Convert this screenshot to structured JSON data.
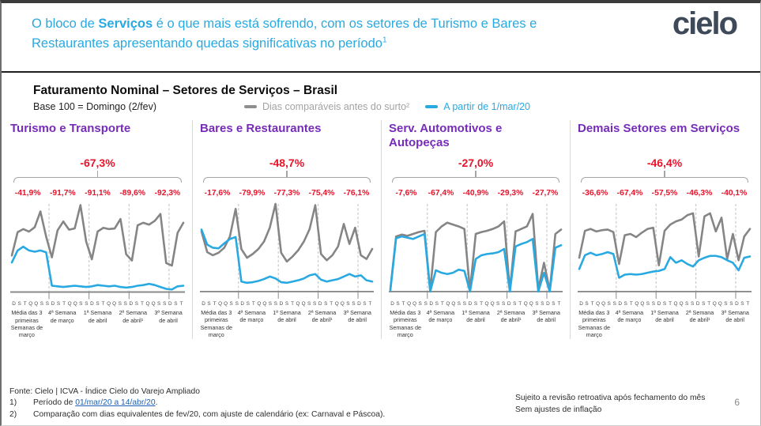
{
  "header": {
    "text_before_bold": "O bloco de ",
    "bold": "Serviços",
    "text_after_bold": " é o que mais está sofrendo, com os setores de Turismo e Bares e Restaurantes apresentando quedas significativas no período",
    "superscript": "1",
    "logo_text": "cielo"
  },
  "section": {
    "title": "Faturamento Nominal – Setores de Serviços – Brasil",
    "base_label": "Base 100 = Domingo (2/fev)",
    "legend": [
      {
        "label": "Dias comparáveis antes do surto²",
        "color": "#8f8f8f"
      },
      {
        "label": "A partir de 1/mar/20",
        "color": "#29A9E1"
      }
    ]
  },
  "colors": {
    "header_blue": "#29A9E1",
    "title_purple": "#762CB8",
    "negative_red": "#E8132B",
    "line_gray": "#858585",
    "line_blue": "#29A9E1",
    "dashed_gray": "#c4c4c4",
    "axis_gray": "#8a8a8a"
  },
  "axis": {
    "day_labels": [
      "D",
      "S",
      "T",
      "Q",
      "Q",
      "S",
      "S",
      "D",
      "S",
      "T",
      "Q",
      "Q",
      "S",
      "S",
      "D",
      "S",
      "T",
      "Q",
      "Q",
      "S",
      "S",
      "D",
      "S",
      "T",
      "Q",
      "Q",
      "S",
      "S",
      "D",
      "S",
      "T"
    ],
    "week_labels": [
      "Média das 3 primeiras Semanas de março",
      "4ª Semana de março",
      "1ª Semana de abril",
      "2ª Semana de abril¹",
      "3ª Semana de abril"
    ]
  },
  "chart_data": [
    {
      "type": "line",
      "title": "Turismo e Transporte",
      "total_change": "-67,3%",
      "week_changes": [
        "-41,9%",
        "-91,7%",
        "-91,1%",
        "-89,6%",
        "-92,3%"
      ],
      "ylim": [
        0,
        140
      ],
      "series": [
        {
          "name": "Dias comparáveis antes do surto",
          "color": "#858585",
          "values": [
            58,
            95,
            100,
            96,
            103,
            128,
            88,
            55,
            98,
            112,
            99,
            101,
            138,
            80,
            52,
            96,
            102,
            100,
            101,
            116,
            60,
            50,
            106,
            110,
            107,
            113,
            124,
            46,
            42,
            94,
            110
          ]
        },
        {
          "name": "A partir de 1/mar/20",
          "color": "#29A9E1",
          "values": [
            47,
            66,
            72,
            66,
            64,
            66,
            63,
            10,
            9,
            8,
            9,
            10,
            9,
            8,
            9,
            11,
            10,
            9,
            10,
            8,
            7,
            8,
            10,
            11,
            13,
            11,
            8,
            5,
            4,
            9,
            10
          ]
        }
      ]
    },
    {
      "type": "line",
      "title": "Bares e Restaurantes",
      "total_change": "-48,7%",
      "week_changes": [
        "-17,6%",
        "-79,9%",
        "-77,3%",
        "-75,4%",
        "-76,1%"
      ],
      "ylim": [
        0,
        140
      ],
      "series": [
        {
          "name": "Dias comparáveis antes do surto",
          "color": "#858585",
          "values": [
            96,
            63,
            58,
            62,
            70,
            88,
            132,
            68,
            54,
            60,
            68,
            80,
            102,
            140,
            62,
            48,
            56,
            66,
            80,
            100,
            138,
            60,
            50,
            58,
            72,
            108,
            76,
            102,
            58,
            52,
            68
          ]
        },
        {
          "name": "A partir de 1/mar/20",
          "color": "#29A9E1",
          "values": [
            99,
            75,
            70,
            69,
            77,
            84,
            87,
            16,
            14,
            15,
            17,
            20,
            24,
            21,
            15,
            14,
            16,
            18,
            21,
            26,
            28,
            19,
            16,
            18,
            20,
            24,
            28,
            24,
            26,
            18,
            16
          ]
        }
      ]
    },
    {
      "type": "line",
      "title": "Serv. Automotivos e Autopeças",
      "total_change": "-27,0%",
      "week_changes": [
        "-7,6%",
        "-67,4%",
        "-40,9%",
        "-29,3%",
        "-27,7%"
      ],
      "ylim": [
        0,
        140
      ],
      "series": [
        {
          "name": "Dias comparáveis antes do surto",
          "color": "#858585",
          "values": [
            4,
            88,
            91,
            89,
            92,
            95,
            97,
            2,
            95,
            104,
            110,
            107,
            104,
            100,
            2,
            92,
            95,
            97,
            100,
            104,
            112,
            2,
            96,
            100,
            104,
            124,
            4,
            46,
            2,
            92,
            99
          ]
        },
        {
          "name": "A partir de 1/mar/20",
          "color": "#29A9E1",
          "values": [
            2,
            85,
            88,
            86,
            84,
            88,
            92,
            0,
            34,
            30,
            28,
            30,
            35,
            33,
            0,
            52,
            58,
            60,
            61,
            63,
            68,
            0,
            72,
            76,
            79,
            84,
            0,
            30,
            0,
            70,
            74
          ]
        }
      ]
    },
    {
      "type": "line",
      "title": "Demais Setores em Serviços",
      "total_change": "-46,4%",
      "week_changes": [
        "-36,6%",
        "-67,4%",
        "-57,5%",
        "-46,3%",
        "-40,1%"
      ],
      "ylim": [
        0,
        140
      ],
      "series": [
        {
          "name": "Dias comparáveis antes do surto",
          "color": "#858585",
          "values": [
            54,
            97,
            100,
            96,
            98,
            99,
            95,
            44,
            90,
            92,
            87,
            94,
            100,
            102,
            42,
            97,
            107,
            112,
            115,
            122,
            125,
            56,
            120,
            125,
            96,
            118,
            52,
            92,
            50,
            88,
            100
          ]
        },
        {
          "name": "A partir de 1/mar/20",
          "color": "#29A9E1",
          "values": [
            36,
            58,
            62,
            58,
            60,
            63,
            60,
            22,
            27,
            28,
            27,
            28,
            30,
            32,
            33,
            36,
            55,
            46,
            50,
            44,
            40,
            50,
            54,
            57,
            57,
            55,
            50,
            46,
            34,
            54,
            56
          ]
        }
      ]
    }
  ],
  "footer": {
    "source": "Fonte: Cielo | ICVA - Índice Cielo do Varejo Ampliado",
    "note1_num": "1)",
    "note1_prefix": "Período de ",
    "note1_link": "01/mar/20 a 14/abr/20",
    "note1_suffix": ".",
    "note2_num": "2)",
    "note2": "Comparação com dias equivalentes de fev/20, com ajuste de calendário (ex: Carnaval e Páscoa).",
    "right_line1": "Sujeito a revisão retroativa após fechamento do mês",
    "right_line2": "Sem ajustes de inflação",
    "page_number": "6"
  }
}
